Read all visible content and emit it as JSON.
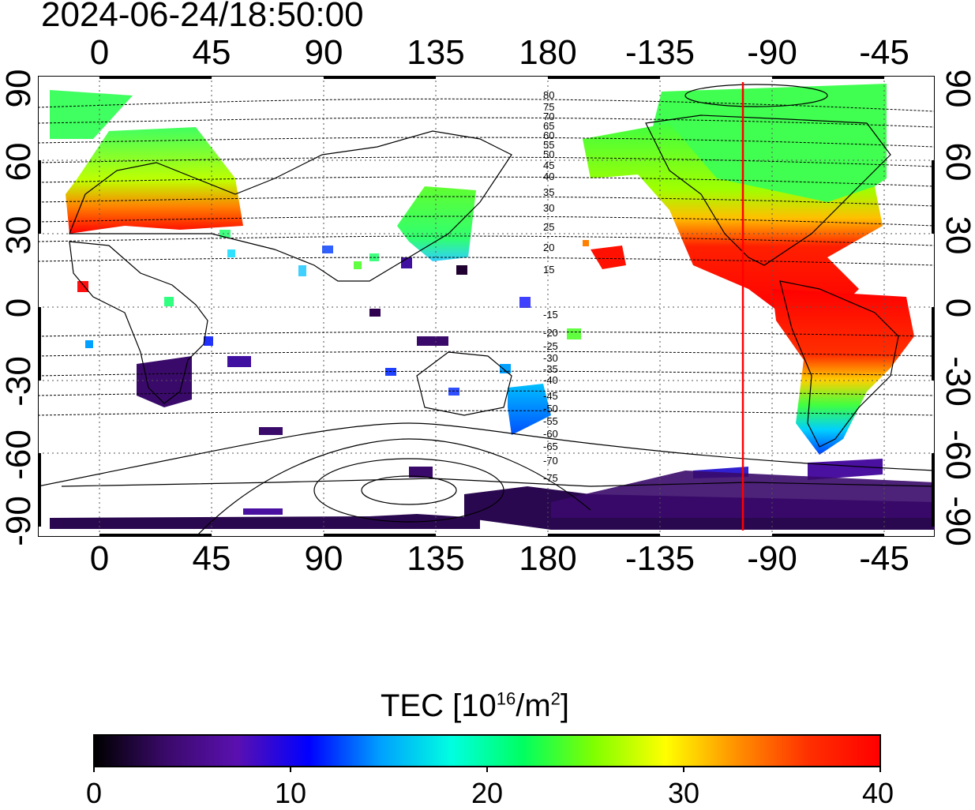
{
  "timestamp": "2024-06-24/18:50:00",
  "top_ticks": [
    "0",
    "45",
    "90",
    "135",
    "180",
    "-135",
    "-90",
    "-45"
  ],
  "bottom_ticks": [
    "0",
    "45",
    "90",
    "135",
    "180",
    "-135",
    "-90",
    "-45"
  ],
  "left_ticks": [
    "90",
    "60",
    "30",
    "0",
    "-30",
    "-60",
    "-90"
  ],
  "right_ticks": [
    "90",
    "60",
    "30",
    "0",
    "-30",
    "-60",
    "-90"
  ],
  "colorbar": {
    "title_main": "TEC  [10",
    "title_exp": "16",
    "title_unit": "/m",
    "title_exp2": "2",
    "title_end": "]",
    "labels": [
      "0",
      "10",
      "20",
      "30",
      "40"
    ],
    "colors": [
      "#000000",
      "#3a0a6a",
      "#5a10b0",
      "#0000ff",
      "#00a0ff",
      "#00ffe0",
      "#00ff60",
      "#80ff00",
      "#ffff00",
      "#ff9000",
      "#ff3000",
      "#ff0000"
    ]
  },
  "map": {
    "marker_color": "#ff0000",
    "contour_labels_north": [
      "80",
      "75",
      "70",
      "65",
      "60",
      "55",
      "50",
      "45",
      "40",
      "35",
      "30",
      "25",
      "20",
      "15"
    ],
    "contour_labels_south": [
      "-15",
      "-20",
      "-25",
      "-30",
      "-35",
      "-40",
      "-45",
      "-50",
      "-55",
      "-60",
      "-65",
      "-70",
      "-75"
    ]
  }
}
